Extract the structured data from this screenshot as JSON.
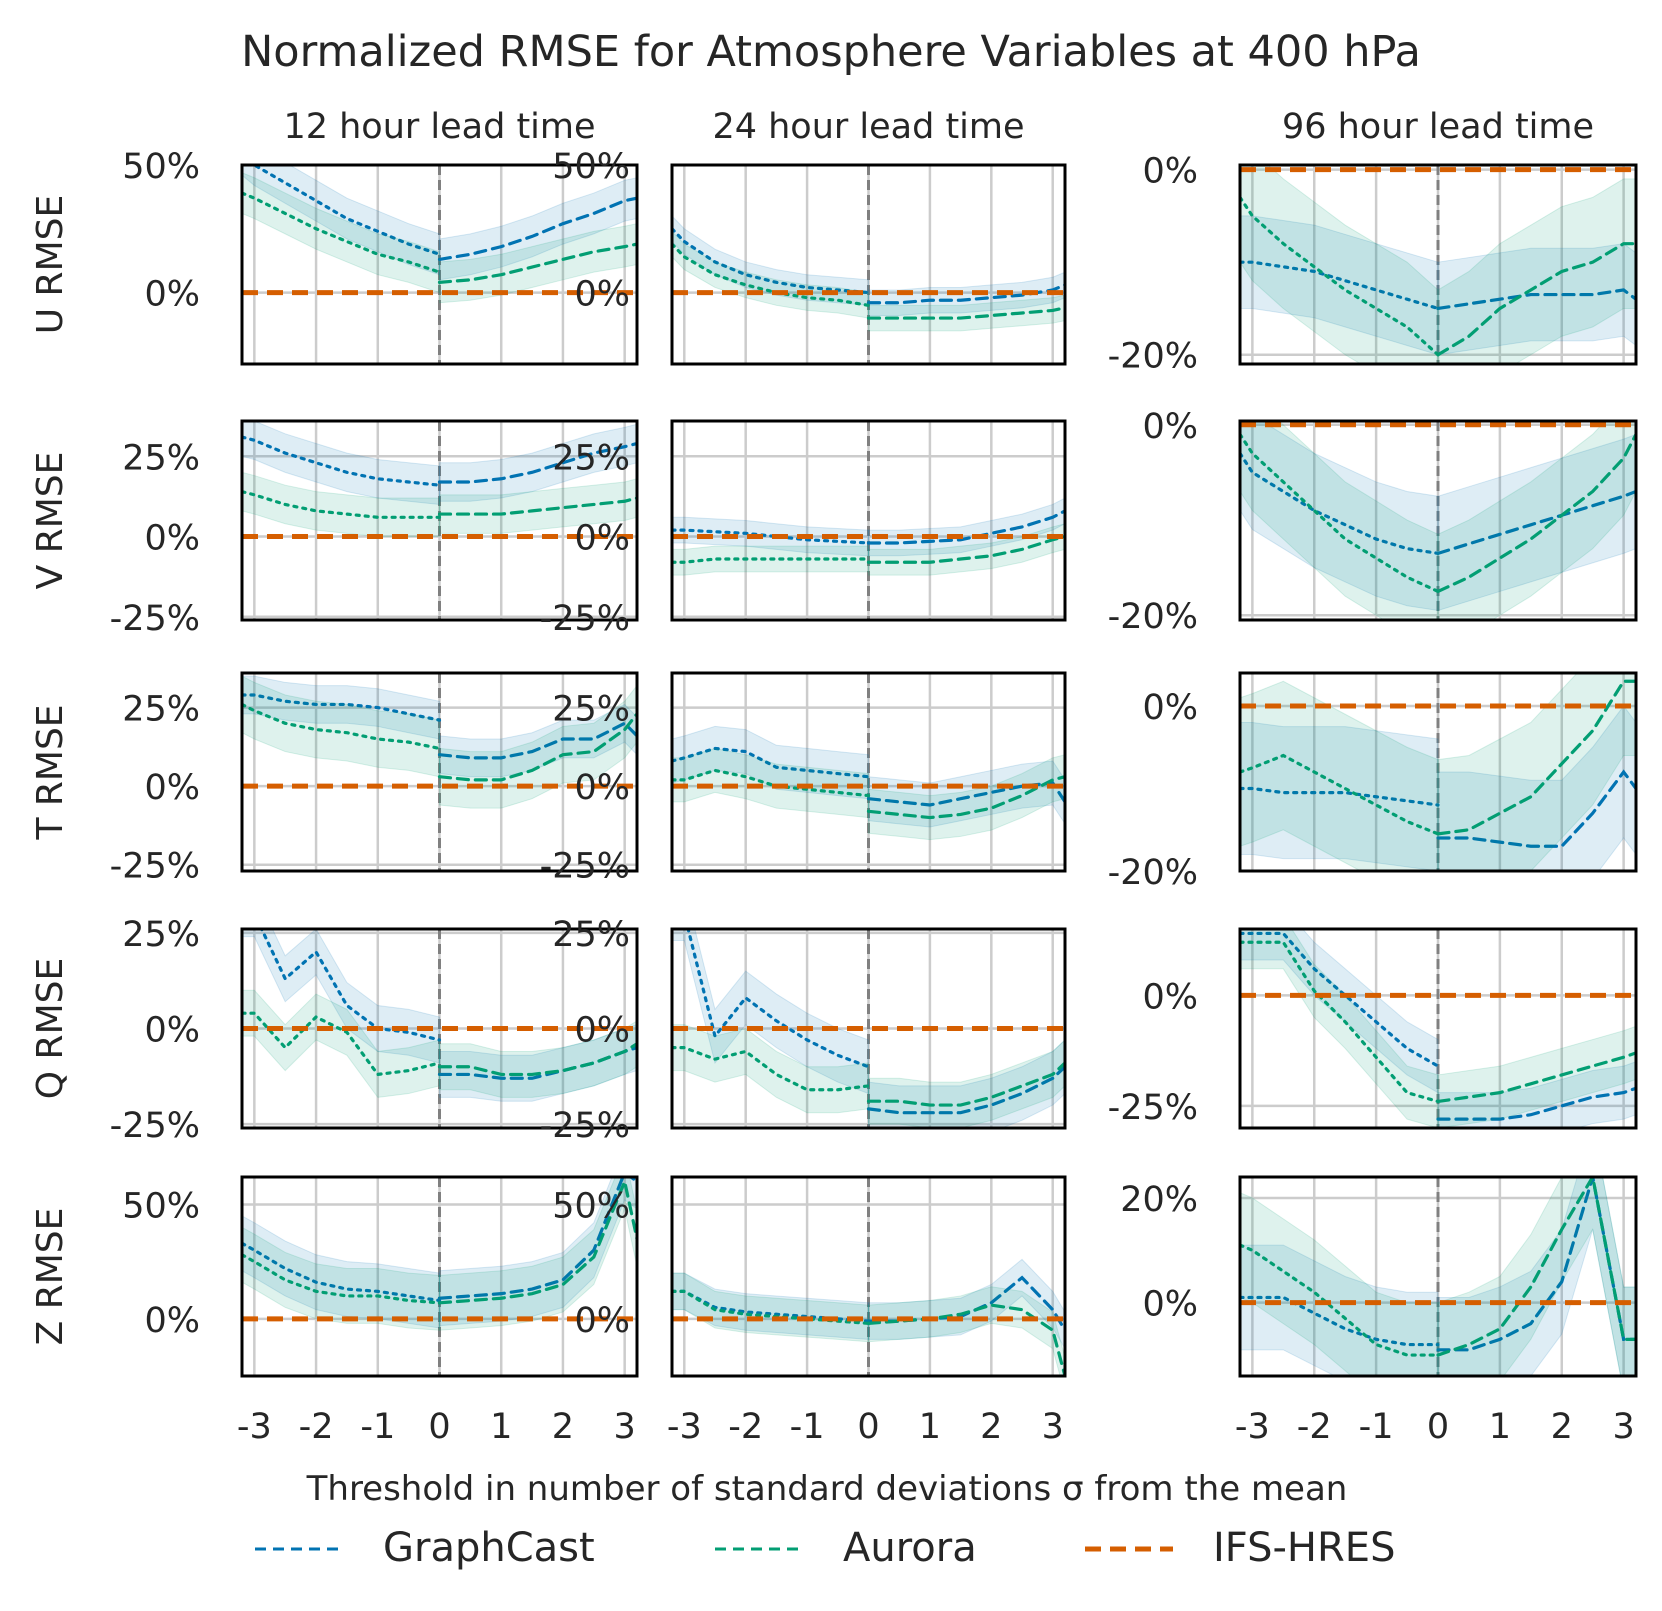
{
  "title": "Normalized RMSE for Atmosphere Variables at 400 hPa",
  "xlabel": "Threshold in number of standard deviations σ from the mean",
  "columns": [
    "12 hour lead time",
    "24 hour lead time",
    "96 hour lead time"
  ],
  "rows": [
    "U RMSE",
    "V RMSE",
    "T RMSE",
    "Q RMSE",
    "Z RMSE"
  ],
  "x_ticks": [
    -3,
    -2,
    -1,
    0,
    1,
    2,
    3
  ],
  "x_tick_labels": [
    "-3",
    "-2",
    "-1",
    "0",
    "1",
    "2",
    "3"
  ],
  "legend": [
    {
      "name": "GraphCast",
      "color": "#0173b2",
      "style": "dashed"
    },
    {
      "name": "Aurora",
      "color": "#029e73",
      "style": "dashed"
    },
    {
      "name": "IFS-HRES",
      "color": "#d55e00",
      "style": "dashed-thick"
    }
  ],
  "colors": {
    "GraphCast": "#0173b2",
    "Aurora": "#029e73",
    "IFS-HRES": "#d55e00"
  },
  "chart_data": {
    "type": "line",
    "xlim": [
      -3.2,
      3.2
    ],
    "note_style": "dotted for x<=0 (below threshold), dashed for x>=0 (above threshold)",
    "x_left": [
      -3.2,
      -3,
      -2.5,
      -2,
      -1.5,
      -1,
      -0.5,
      0
    ],
    "x_right": [
      0,
      0.5,
      1,
      1.5,
      2,
      2.5,
      3,
      3.2
    ],
    "panels": [
      {
        "row": "U RMSE",
        "col": "12 hour lead time",
        "ylim": [
          -28,
          50
        ],
        "yticks": [
          0,
          50
        ],
        "ytick_labels": [
          "0%",
          "50%"
        ],
        "GraphCast": {
          "left": [
            54,
            50,
            43,
            36,
            29,
            24,
            19,
            15
          ],
          "right": [
            13,
            15,
            18,
            22,
            27,
            31,
            36,
            37
          ],
          "band": 8
        },
        "Aurora": {
          "left": [
            39,
            37,
            31,
            25,
            20,
            15,
            12,
            8
          ],
          "right": [
            4,
            5,
            7,
            10,
            13,
            16,
            18,
            19
          ],
          "band": 8
        }
      },
      {
        "row": "U RMSE",
        "col": "24 hour lead time",
        "ylim": [
          -28,
          50
        ],
        "yticks": [
          0,
          50
        ],
        "ytick_labels": [
          "0%",
          "50%"
        ],
        "GraphCast": {
          "left": [
            25,
            20,
            12,
            7,
            4,
            2,
            1,
            0
          ],
          "right": [
            -4,
            -4,
            -3,
            -3,
            -2,
            -1,
            1,
            3
          ],
          "band": 5
        },
        "Aurora": {
          "left": [
            19,
            14,
            7,
            3,
            0,
            -2,
            -3,
            -5
          ],
          "right": [
            -10,
            -10,
            -10,
            -10,
            -9,
            -8,
            -7,
            -6
          ],
          "band": 5
        }
      },
      {
        "row": "U RMSE",
        "col": "96 hour lead time",
        "ylim": [
          -21,
          0.5
        ],
        "yticks": [
          0,
          -20
        ],
        "ytick_labels": [
          "0%",
          "-20%"
        ],
        "GraphCast": {
          "left": [
            -10,
            -10,
            -10.5,
            -11,
            -12,
            -13,
            -14,
            -15
          ],
          "right": [
            -15,
            -14.5,
            -14,
            -13.5,
            -13.5,
            -13.5,
            -13,
            -14
          ],
          "band": 5
        },
        "Aurora": {
          "left": [
            -3,
            -5,
            -8,
            -10.5,
            -13,
            -15,
            -17,
            -20
          ],
          "right": [
            -20,
            -18,
            -15,
            -13,
            -11,
            -10,
            -8,
            -8
          ],
          "band": 7
        }
      },
      {
        "row": "V RMSE",
        "col": "12 hour lead time",
        "ylim": [
          -26,
          36
        ],
        "yticks": [
          -25,
          0,
          25
        ],
        "ytick_labels": [
          "-25%",
          "0%",
          "25%"
        ],
        "GraphCast": {
          "left": [
            31,
            30,
            26,
            23,
            20,
            18,
            17,
            16
          ],
          "right": [
            17,
            17,
            18,
            20,
            23,
            26,
            28,
            29
          ],
          "band": 6
        },
        "Aurora": {
          "left": [
            14,
            13,
            10,
            8,
            7,
            6,
            6,
            6
          ],
          "right": [
            7,
            7,
            7,
            8,
            9,
            10,
            11,
            12
          ],
          "band": 6
        }
      },
      {
        "row": "V RMSE",
        "col": "24 hour lead time",
        "ylim": [
          -26,
          36
        ],
        "yticks": [
          -25,
          0,
          25
        ],
        "ytick_labels": [
          "-25%",
          "0%",
          "25%"
        ],
        "GraphCast": {
          "left": [
            2,
            2,
            1.5,
            1,
            0,
            -1,
            -1.5,
            -2
          ],
          "right": [
            -2,
            -2,
            -1.5,
            -1,
            1,
            3,
            6,
            8
          ],
          "band": 4
        },
        "Aurora": {
          "left": [
            -8,
            -8,
            -7,
            -7,
            -7,
            -7,
            -7,
            -7
          ],
          "right": [
            -8,
            -8,
            -8,
            -7,
            -6,
            -4,
            -1,
            0
          ],
          "band": 4
        }
      },
      {
        "row": "V RMSE",
        "col": "96 hour lead time",
        "ylim": [
          -20.5,
          0.4
        ],
        "yticks": [
          0,
          -20
        ],
        "ytick_labels": [
          "0%",
          "-20%"
        ],
        "GraphCast": {
          "left": [
            -3,
            -5,
            -7,
            -9,
            -10.5,
            -12,
            -13,
            -13.5
          ],
          "right": [
            -13.5,
            -12.5,
            -11.5,
            -10.5,
            -9.5,
            -8.5,
            -7.5,
            -7
          ],
          "band": 6
        },
        "Aurora": {
          "left": [
            -1,
            -3,
            -6,
            -9,
            -12,
            -14,
            -16,
            -17.5
          ],
          "right": [
            -17.5,
            -16,
            -14,
            -12,
            -9.5,
            -7,
            -3.5,
            -1
          ],
          "band": 6
        }
      },
      {
        "row": "T RMSE",
        "col": "12 hour lead time",
        "ylim": [
          -27,
          36
        ],
        "yticks": [
          -25,
          0,
          25
        ],
        "ytick_labels": [
          "-25%",
          "0%",
          "25%"
        ],
        "GraphCast": {
          "left": [
            29,
            29,
            27,
            26,
            26,
            25,
            23,
            21
          ],
          "right": [
            10,
            9,
            9,
            11,
            15,
            15,
            20,
            16
          ],
          "band": 6
        },
        "Aurora": {
          "left": [
            26,
            24,
            20,
            18,
            17,
            15,
            14,
            12
          ],
          "right": [
            3,
            2,
            2,
            5,
            10,
            11,
            18,
            23
          ],
          "band": 9
        }
      },
      {
        "row": "T RMSE",
        "col": "24 hour lead time",
        "ylim": [
          -27,
          36
        ],
        "yticks": [
          -25,
          0,
          25
        ],
        "ytick_labels": [
          "-25%",
          "0%",
          "25%"
        ],
        "GraphCast": {
          "left": [
            8,
            9,
            12,
            11,
            6,
            5,
            4,
            3
          ],
          "right": [
            -4,
            -5,
            -6,
            -4,
            -2,
            0,
            1,
            -5
          ],
          "band": 7
        },
        "Aurora": {
          "left": [
            2,
            2,
            5,
            3,
            0,
            -1,
            -2,
            -3
          ],
          "right": [
            -8,
            -9,
            -10,
            -9,
            -7,
            -3,
            2,
            3
          ],
          "band": 7
        }
      },
      {
        "row": "T RMSE",
        "col": "96 hour lead time",
        "ylim": [
          -20,
          4
        ],
        "yticks": [
          0,
          -20
        ],
        "ytick_labels": [
          "0%",
          "-20%"
        ],
        "GraphCast": {
          "left": [
            -10,
            -10,
            -10.5,
            -10.5,
            -10.5,
            -11,
            -11.5,
            -12
          ],
          "right": [
            -16,
            -16,
            -16.5,
            -17,
            -17,
            -13,
            -8,
            -10
          ],
          "band": 8
        },
        "Aurora": {
          "left": [
            -8,
            -7.5,
            -6,
            -8,
            -10,
            -12,
            -14,
            -15.5
          ],
          "right": [
            -15.5,
            -15,
            -13,
            -11,
            -7,
            -3,
            3,
            3
          ],
          "band": 9
        }
      },
      {
        "row": "Q RMSE",
        "col": "12 hour lead time",
        "ylim": [
          -26,
          26
        ],
        "yticks": [
          -25,
          0,
          25
        ],
        "ytick_labels": [
          "-25%",
          "0%",
          "25%"
        ],
        "GraphCast": {
          "left": [
            30,
            30,
            13,
            20,
            6,
            0,
            -1,
            -3
          ],
          "right": [
            -12,
            -12,
            -13,
            -13,
            -11,
            -9,
            -6,
            -5
          ],
          "band": 6
        },
        "Aurora": {
          "left": [
            4,
            4,
            -5,
            3,
            -1,
            -12,
            -11,
            -9
          ],
          "right": [
            -10,
            -10,
            -12,
            -12,
            -11,
            -9,
            -6,
            -4
          ],
          "band": 6
        }
      },
      {
        "row": "Q RMSE",
        "col": "24 hour lead time",
        "ylim": [
          -26,
          26
        ],
        "yticks": [
          -25,
          0,
          25
        ],
        "ytick_labels": [
          "-25%",
          "0%",
          "25%"
        ],
        "GraphCast": {
          "left": [
            30,
            30,
            -2,
            8,
            2,
            -3,
            -7,
            -10
          ],
          "right": [
            -21,
            -22,
            -22,
            -22,
            -20,
            -17,
            -13,
            -10
          ],
          "band": 7
        },
        "Aurora": {
          "left": [
            -5,
            -5,
            -8,
            -6,
            -12,
            -16,
            -16,
            -15
          ],
          "right": [
            -19,
            -19,
            -20,
            -20,
            -18,
            -15,
            -12,
            -9
          ],
          "band": 6
        }
      },
      {
        "row": "Q RMSE",
        "col": "96 hour lead time",
        "ylim": [
          -30,
          15
        ],
        "yticks": [
          0,
          -25
        ],
        "ytick_labels": [
          "0%",
          "-25%"
        ],
        "GraphCast": {
          "left": [
            14,
            14,
            14,
            6,
            0,
            -6,
            -12,
            -16
          ],
          "right": [
            -28,
            -28,
            -28,
            -27,
            -25,
            -23,
            -22,
            -21
          ],
          "band": 6
        },
        "Aurora": {
          "left": [
            12,
            12,
            12,
            1,
            -6,
            -14,
            -22,
            -24
          ],
          "right": [
            -24,
            -23,
            -22,
            -20,
            -18,
            -16,
            -14,
            -13
          ],
          "band": 6
        }
      },
      {
        "row": "Z RMSE",
        "col": "12 hour lead time",
        "ylim": [
          -25,
          62
        ],
        "yticks": [
          0,
          50
        ],
        "ytick_labels": [
          "0%",
          "50%"
        ],
        "GraphCast": {
          "left": [
            33,
            30,
            22,
            16,
            13,
            12,
            10,
            8
          ],
          "right": [
            9,
            10,
            11,
            13,
            17,
            30,
            64,
            60
          ],
          "band": 12
        },
        "Aurora": {
          "left": [
            28,
            25,
            17,
            12,
            10,
            10,
            8,
            7
          ],
          "right": [
            7,
            8,
            9,
            11,
            15,
            27,
            60,
            35
          ],
          "band": 12
        }
      },
      {
        "row": "Z RMSE",
        "col": "24 hour lead time",
        "ylim": [
          -25,
          62
        ],
        "yticks": [
          0,
          50
        ],
        "ytick_labels": [
          "0%",
          "50%"
        ],
        "GraphCast": {
          "left": [
            12,
            12,
            5,
            3,
            2,
            1,
            0,
            -1
          ],
          "right": [
            -1,
            -1,
            0,
            1,
            7,
            18,
            4,
            -5
          ],
          "band": 8
        },
        "Aurora": {
          "left": [
            12,
            12,
            4,
            2,
            1,
            0,
            -1,
            -2
          ],
          "right": [
            -2,
            -1,
            0,
            2,
            6,
            4,
            -5,
            -25
          ],
          "band": 8
        }
      },
      {
        "row": "Z RMSE",
        "col": "96 hour lead time",
        "ylim": [
          -14,
          24
        ],
        "yticks": [
          0,
          20
        ],
        "ytick_labels": [
          "0%",
          "20%"
        ],
        "GraphCast": {
          "left": [
            1,
            1,
            1,
            -2,
            -5,
            -7,
            -8,
            -8
          ],
          "right": [
            -9,
            -9,
            -7,
            -4,
            4,
            24,
            -7,
            -7
          ],
          "band": 10
        },
        "Aurora": {
          "left": [
            11,
            10,
            6,
            2,
            -3,
            -8,
            -10,
            -10
          ],
          "right": [
            -10,
            -8,
            -5,
            3,
            14,
            24,
            -7,
            -7
          ],
          "band": 10
        }
      }
    ]
  }
}
